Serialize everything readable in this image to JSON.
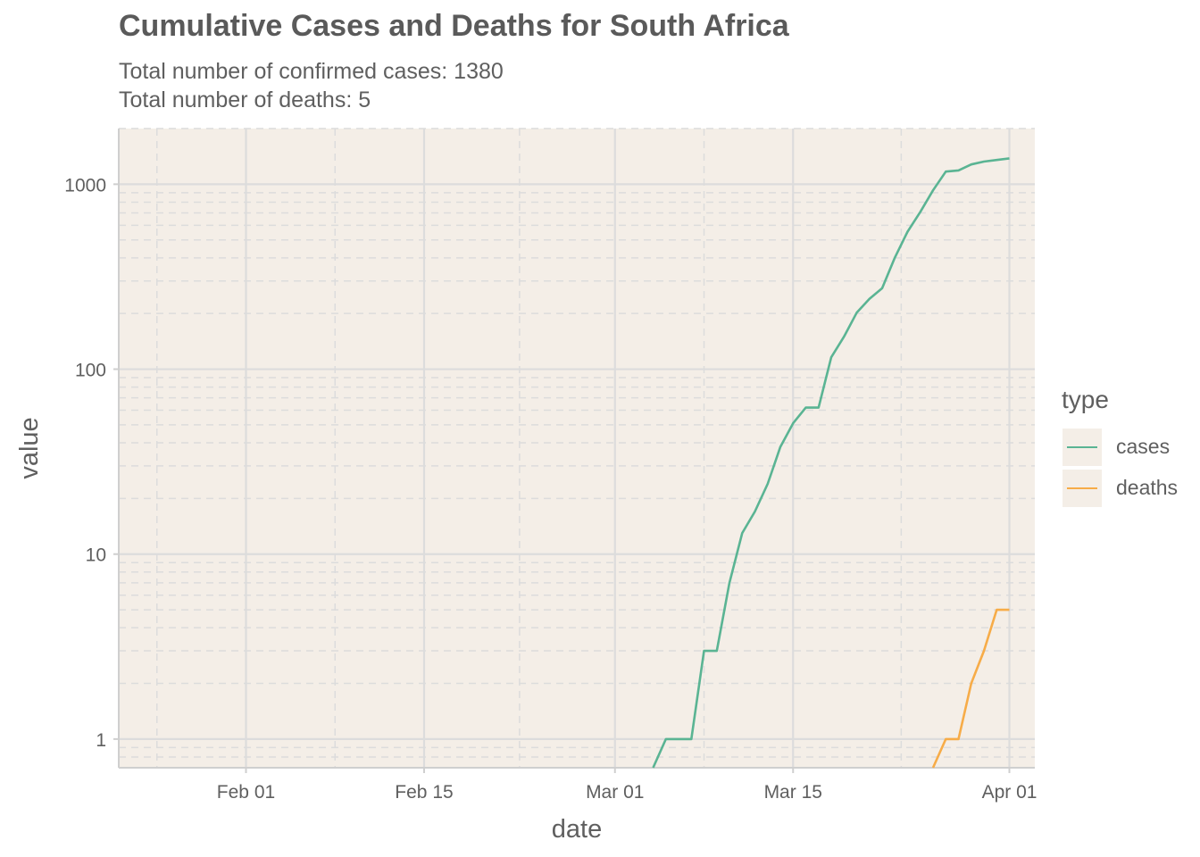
{
  "chart_data": {
    "type": "line",
    "title": "Cumulative Cases and Deaths for South Africa",
    "subtitle": [
      "Total number of confirmed cases: 1380",
      "Total number of deaths: 5"
    ],
    "xlabel": "date",
    "ylabel": "value",
    "yscale": "log10",
    "xlim": [
      "2020-01-22",
      "2020-04-03"
    ],
    "ylim": [
      0.7,
      2000
    ],
    "xticks": [
      {
        "date": "2020-02-01",
        "label": "Feb 01"
      },
      {
        "date": "2020-02-15",
        "label": "Feb 15"
      },
      {
        "date": "2020-03-01",
        "label": "Mar 01"
      },
      {
        "date": "2020-03-15",
        "label": "Mar 15"
      },
      {
        "date": "2020-04-01",
        "label": "Apr 01"
      }
    ],
    "yticks": [
      {
        "value": 1,
        "label": "1"
      },
      {
        "value": 10,
        "label": "10"
      },
      {
        "value": 100,
        "label": "100"
      },
      {
        "value": 1000,
        "label": "1000"
      }
    ],
    "grid": true,
    "legend": {
      "title": "type",
      "position": "right"
    },
    "series": [
      {
        "name": "cases",
        "color": "#5ab493",
        "points": [
          [
            "2020-03-04",
            0.7
          ],
          [
            "2020-03-05",
            1
          ],
          [
            "2020-03-06",
            1
          ],
          [
            "2020-03-07",
            1
          ],
          [
            "2020-03-08",
            3
          ],
          [
            "2020-03-09",
            3
          ],
          [
            "2020-03-10",
            7
          ],
          [
            "2020-03-11",
            13
          ],
          [
            "2020-03-12",
            17
          ],
          [
            "2020-03-13",
            24
          ],
          [
            "2020-03-14",
            38
          ],
          [
            "2020-03-15",
            51
          ],
          [
            "2020-03-16",
            62
          ],
          [
            "2020-03-17",
            62
          ],
          [
            "2020-03-18",
            116
          ],
          [
            "2020-03-19",
            150
          ],
          [
            "2020-03-20",
            202
          ],
          [
            "2020-03-21",
            240
          ],
          [
            "2020-03-22",
            274
          ],
          [
            "2020-03-23",
            402
          ],
          [
            "2020-03-24",
            554
          ],
          [
            "2020-03-25",
            709
          ],
          [
            "2020-03-26",
            927
          ],
          [
            "2020-03-27",
            1170
          ],
          [
            "2020-03-28",
            1187
          ],
          [
            "2020-03-29",
            1280
          ],
          [
            "2020-03-30",
            1326
          ],
          [
            "2020-03-31",
            1353
          ],
          [
            "2020-04-01",
            1380
          ]
        ]
      },
      {
        "name": "deaths",
        "color": "#f7ac48",
        "points": [
          [
            "2020-03-26",
            0.7
          ],
          [
            "2020-03-27",
            1
          ],
          [
            "2020-03-28",
            1
          ],
          [
            "2020-03-29",
            2
          ],
          [
            "2020-03-30",
            3
          ],
          [
            "2020-03-31",
            5
          ],
          [
            "2020-04-01",
            5
          ]
        ]
      }
    ]
  },
  "colors": {
    "panel": "#f4eee7",
    "grid": "#dcdcdc",
    "axis": "#cfcfcf",
    "text": "#5f5f5f"
  }
}
